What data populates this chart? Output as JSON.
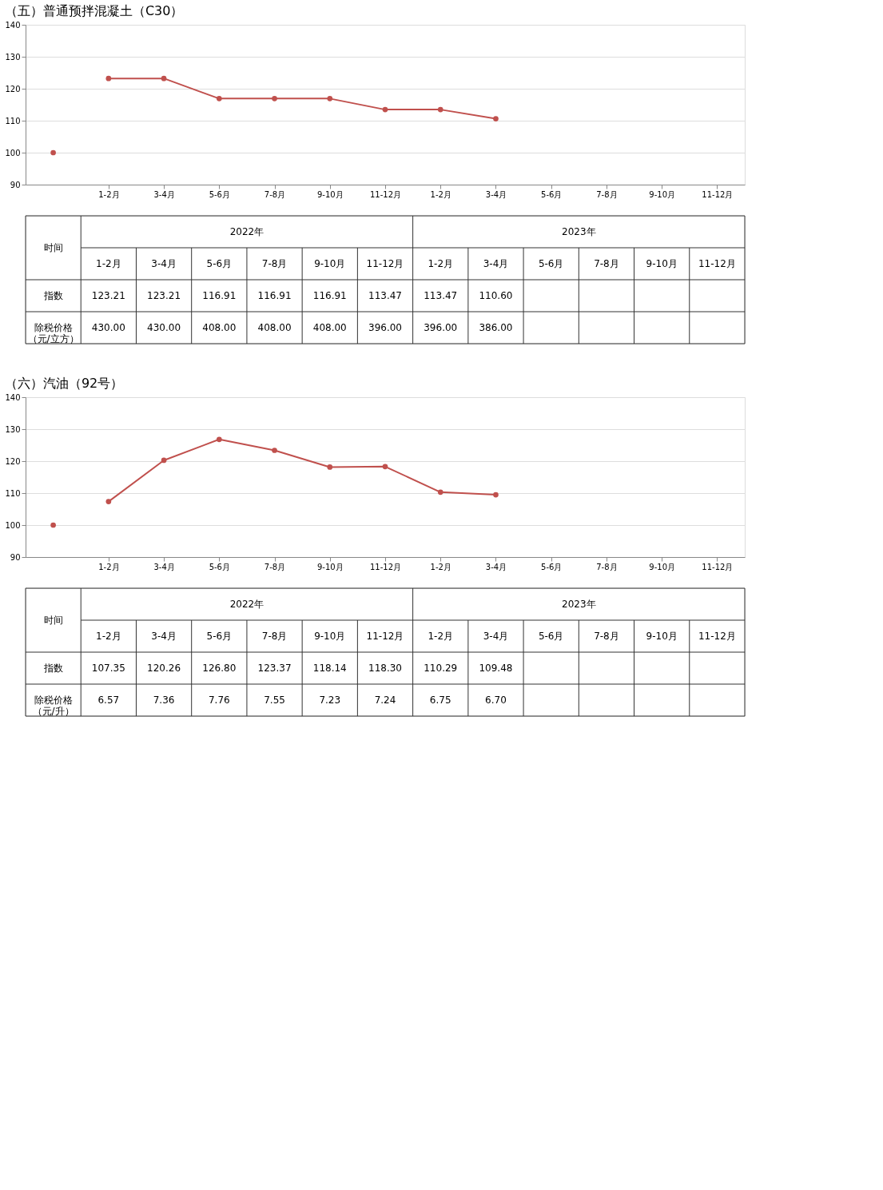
{
  "chart_data": [
    {
      "type": "line",
      "title": "（五）普通预拌混凝土（C30）",
      "categories": [
        null,
        "1-2月",
        "3-4月",
        "5-6月",
        "7-8月",
        "9-10月",
        "11-12月",
        "1-2月",
        "3-4月",
        "5-6月",
        "7-8月",
        "9-10月",
        "11-12月"
      ],
      "series": [
        {
          "color": "#c0504d",
          "values": [
            null,
            123.21,
            123.21,
            116.91,
            116.91,
            116.91,
            113.47,
            113.47,
            110.6,
            null,
            null,
            null,
            null
          ],
          "value_labels": [
            null,
            "123.21",
            "123.21",
            "116.91",
            "116.91",
            "116.91",
            "113.47",
            "113.47",
            "110.60",
            null,
            null,
            null,
            null
          ]
        },
        {
          "type": "scatter",
          "color": "#c0504d",
          "values": [
            100,
            null,
            null,
            null,
            null,
            null,
            null,
            null,
            null,
            null,
            null,
            null,
            null
          ]
        }
      ],
      "ylim": [
        90,
        140
      ],
      "yticks": [
        90,
        100,
        110,
        120,
        130,
        140
      ],
      "grid": "y",
      "marker": "circle",
      "annotations": [
        "2022年",
        "2023年",
        "时间",
        "指数",
        "除税价格（元/立方）",
        "430.00",
        "430.00",
        "408.00",
        "408.00",
        "408.00",
        "396.00",
        "396.00",
        "386.00"
      ]
    },
    {
      "type": "line",
      "title": "（六）汽油（92号）",
      "categories": [
        null,
        "1-2月",
        "3-4月",
        "5-6月",
        "7-8月",
        "9-10月",
        "11-12月",
        "1-2月",
        "3-4月",
        "5-6月",
        "7-8月",
        "9-10月",
        "11-12月"
      ],
      "series": [
        {
          "color": "#c0504d",
          "values": [
            null,
            107.35,
            120.26,
            126.8,
            123.37,
            118.14,
            118.3,
            110.29,
            109.48,
            null,
            null,
            null,
            null
          ],
          "value_labels": [
            null,
            "107.35",
            "120.26",
            "126.80",
            "123.37",
            "118.14",
            "118.30",
            "110.29",
            "109.48",
            null,
            null,
            null,
            null
          ]
        },
        {
          "type": "scatter",
          "color": "#c0504d",
          "values": [
            100,
            null,
            null,
            null,
            null,
            null,
            null,
            null,
            null,
            null,
            null,
            null,
            null
          ]
        }
      ],
      "ylim": [
        90,
        140
      ],
      "yticks": [
        90,
        100,
        110,
        120,
        130,
        140
      ],
      "grid": "y",
      "marker": "circle",
      "annotations": [
        "2022年",
        "2023年",
        "时间",
        "指数",
        "除税价格（元/升）",
        "6.57",
        "7.36",
        "7.76",
        "7.55",
        "7.23",
        "7.24",
        "6.75",
        "6.70"
      ]
    }
  ]
}
